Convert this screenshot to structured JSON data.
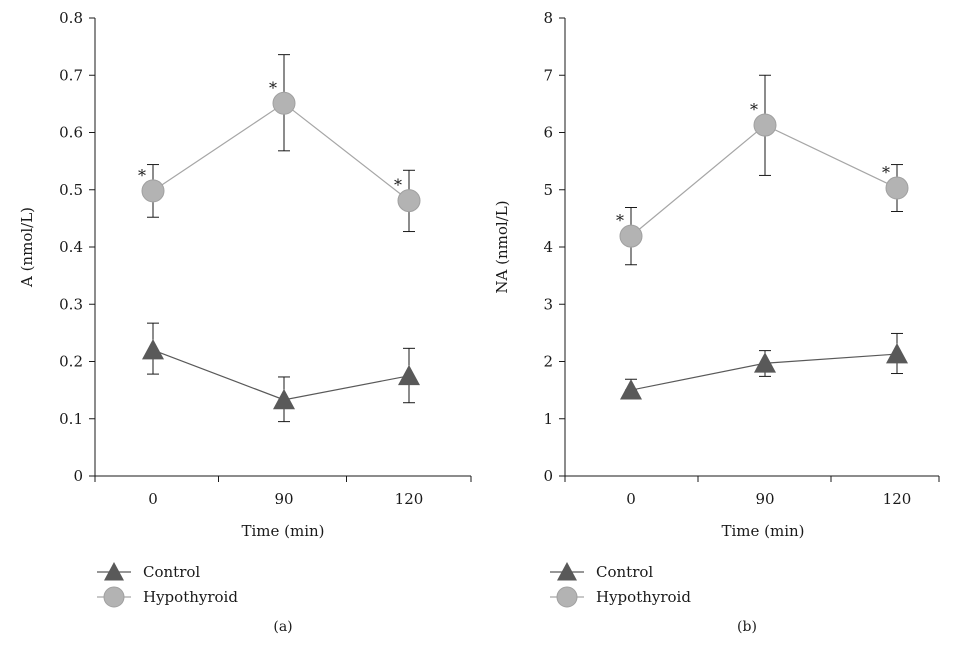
{
  "chart_data": [
    {
      "type": "line",
      "panel_label": "(a)",
      "xlabel": "Time (min)",
      "ylabel": "A (nmol/L)",
      "categories": [
        "0",
        "90",
        "120"
      ],
      "ylim": [
        0,
        0.8
      ],
      "yticks": [
        "0",
        "0.1",
        "0.2",
        "0.3",
        "0.4",
        "0.5",
        "0.6",
        "0.7",
        "0.8"
      ],
      "grid": false,
      "legend_position": "bottom-left",
      "series": [
        {
          "name": "Control",
          "marker": "triangle",
          "color": "#595959",
          "line_color": "#595959",
          "values": [
            0.22,
            0.133,
            0.175
          ],
          "error_upper": [
            0.267,
            0.173,
            0.223
          ],
          "error_lower": [
            0.178,
            0.095,
            0.128
          ],
          "significance": [
            "",
            "",
            ""
          ]
        },
        {
          "name": "Hypothyroid",
          "marker": "circle",
          "color": "#b3b3b3",
          "line_color": "#a6a6a6",
          "values": [
            0.498,
            0.651,
            0.481
          ],
          "error_upper": [
            0.544,
            0.736,
            0.534
          ],
          "error_lower": [
            0.452,
            0.568,
            0.427
          ],
          "significance": [
            "*",
            "*",
            "*"
          ]
        }
      ]
    },
    {
      "type": "line",
      "panel_label": "(b)",
      "xlabel": "Time (min)",
      "ylabel": "NA (nmol/L)",
      "categories": [
        "0",
        "90",
        "120"
      ],
      "ylim": [
        0,
        8
      ],
      "yticks": [
        "0",
        "1",
        "2",
        "3",
        "4",
        "5",
        "6",
        "7",
        "8"
      ],
      "grid": false,
      "legend_position": "bottom-left",
      "series": [
        {
          "name": "Control",
          "marker": "triangle",
          "color": "#595959",
          "line_color": "#595959",
          "values": [
            1.5,
            1.97,
            2.13
          ],
          "error_upper": [
            1.69,
            2.19,
            2.49
          ],
          "error_lower": [
            1.5,
            1.74,
            1.79
          ],
          "significance": [
            "",
            "",
            ""
          ]
        },
        {
          "name": "Hypothyroid",
          "marker": "circle",
          "color": "#b3b3b3",
          "line_color": "#a6a6a6",
          "values": [
            4.19,
            6.13,
            5.03
          ],
          "error_upper": [
            4.69,
            7.0,
            5.44
          ],
          "error_lower": [
            3.69,
            5.25,
            4.62
          ],
          "significance": [
            "*",
            "*",
            "*"
          ]
        }
      ]
    }
  ]
}
